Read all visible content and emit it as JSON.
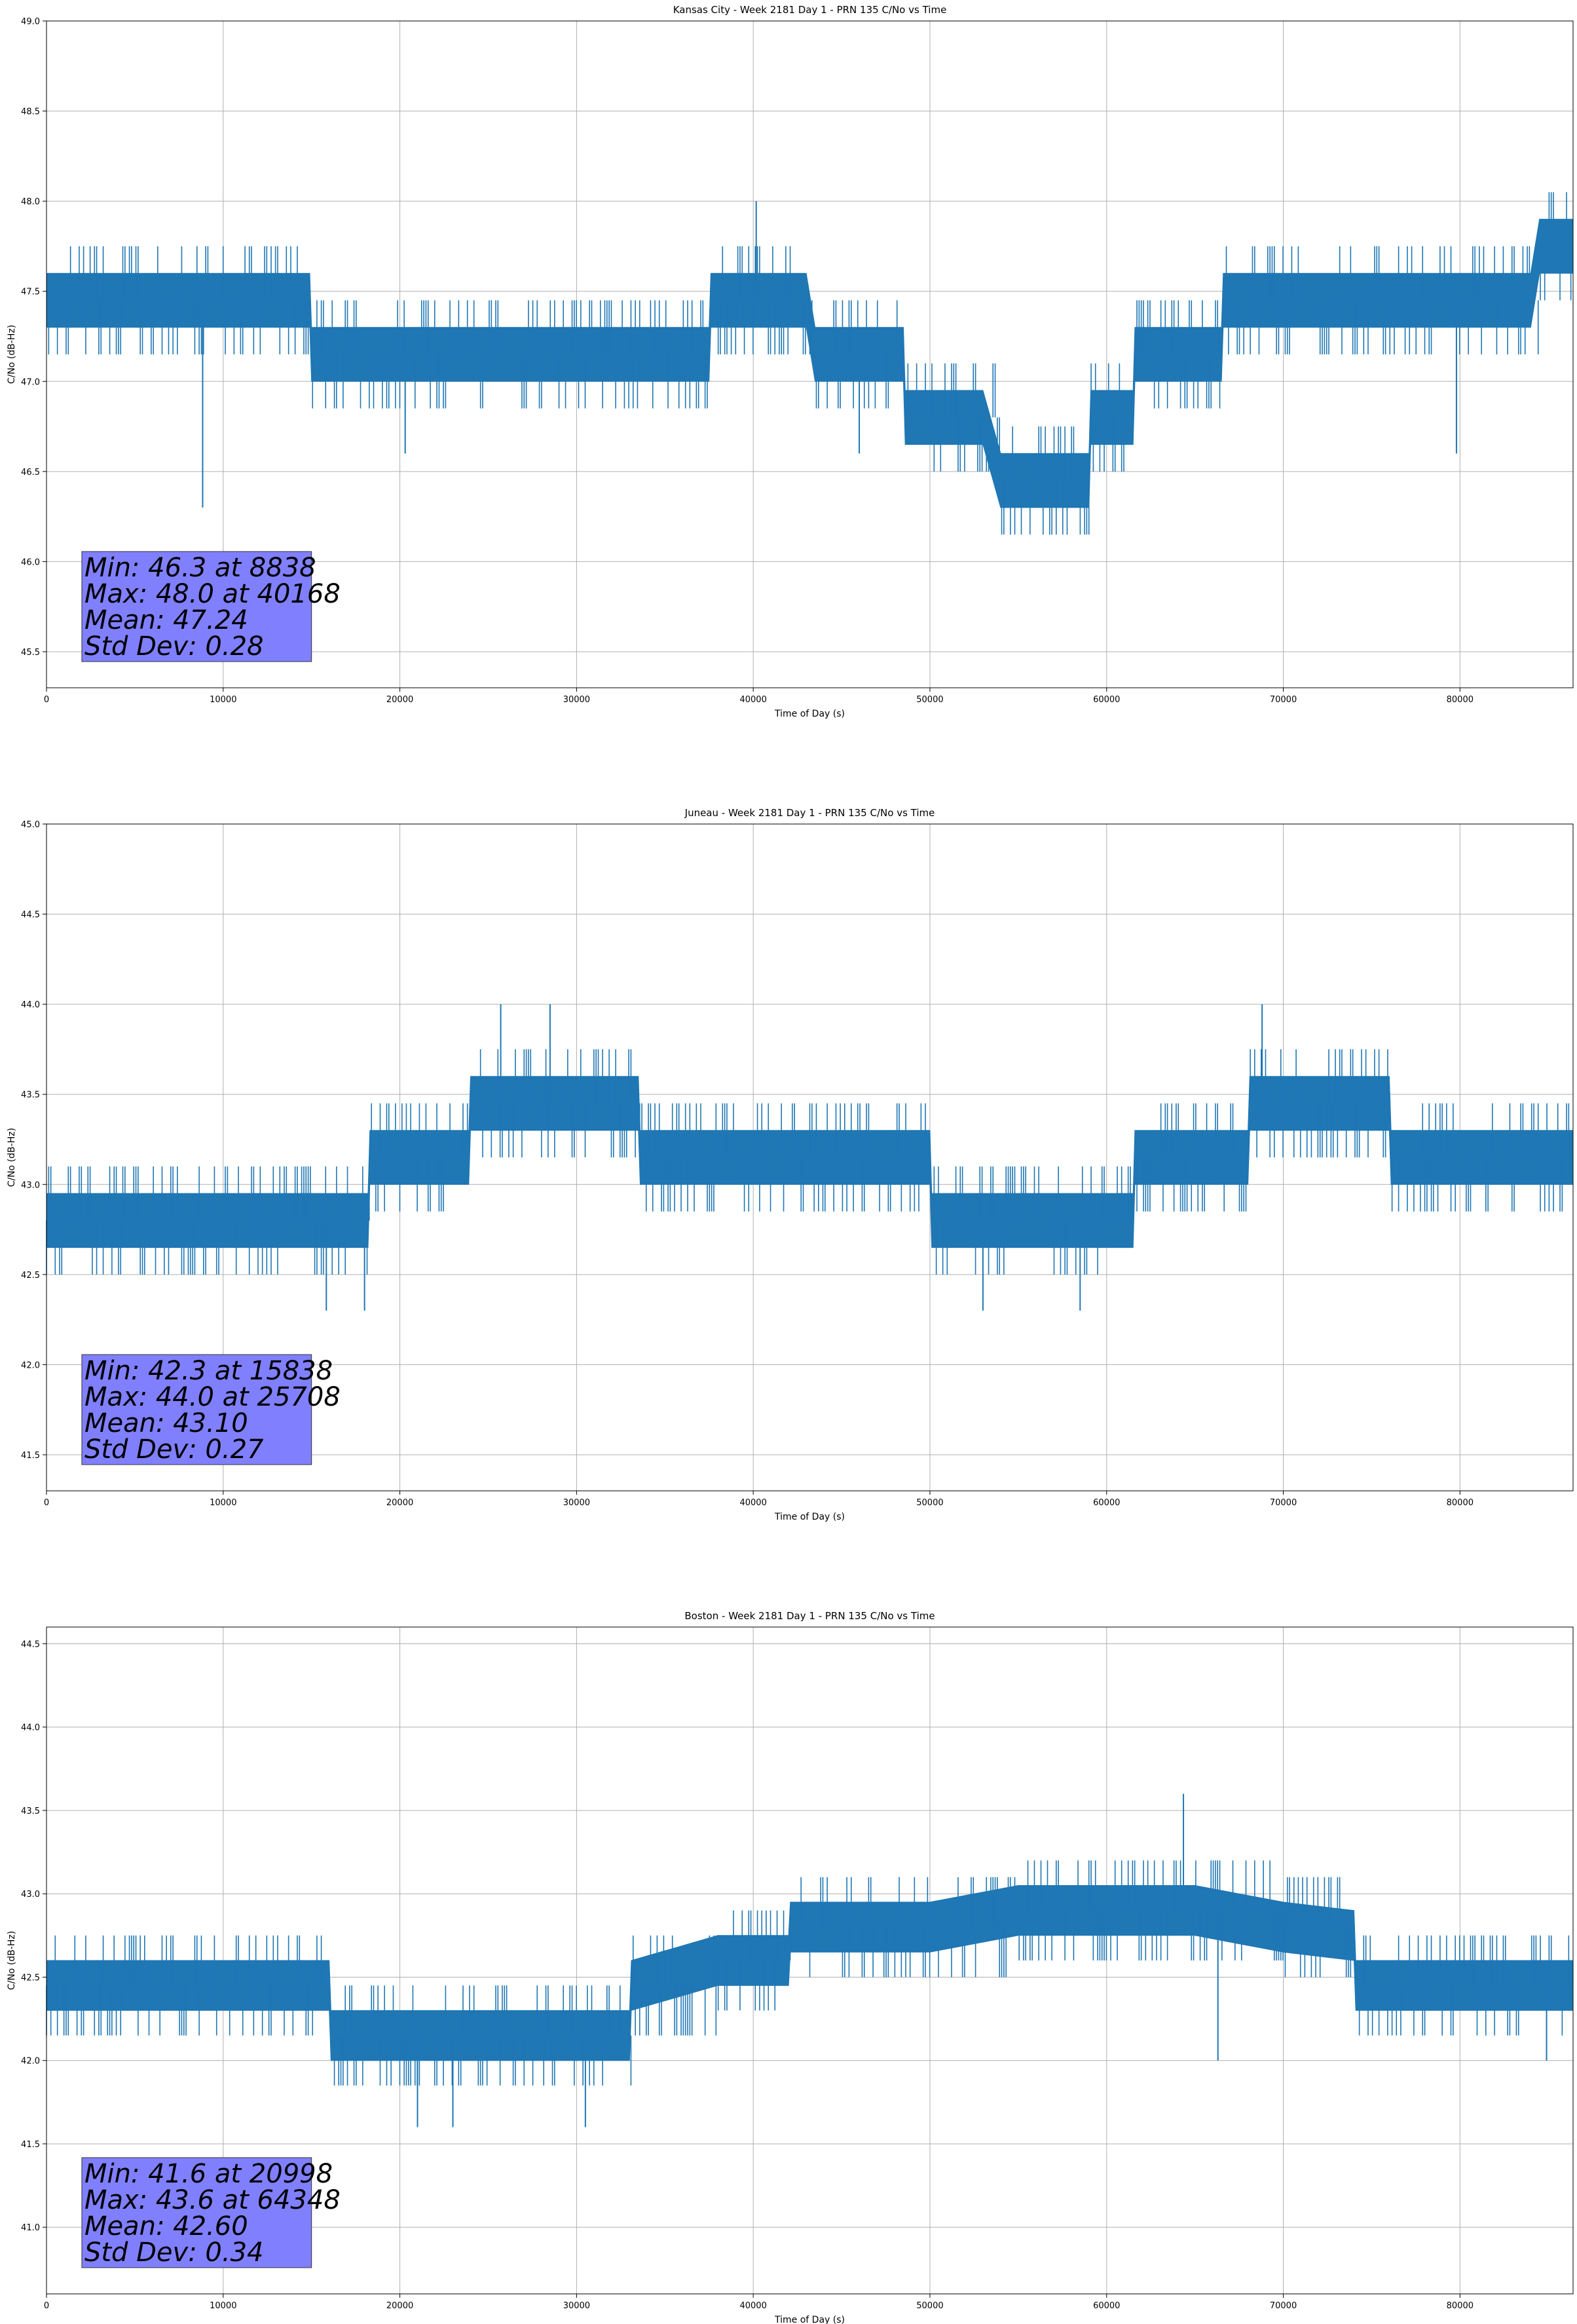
{
  "chart_data": [
    {
      "type": "line",
      "title": "Kansas City - Week 2181 Day 1 - PRN 135 C/No vs Time",
      "xlabel": "Time of Day (s)",
      "ylabel": "C/No (dB-Hz)",
      "xlim": [
        0,
        86400
      ],
      "ylim": [
        45.3,
        49.0
      ],
      "xticks": [
        0,
        10000,
        20000,
        30000,
        40000,
        50000,
        60000,
        70000,
        80000
      ],
      "yticks": [
        45.5,
        46.0,
        46.5,
        47.0,
        47.5,
        48.0,
        48.5,
        49.0
      ],
      "grid": true,
      "color": "#1f77b4",
      "band_width": 0.3,
      "series": [
        {
          "name": "C/No",
          "x": [
            0,
            5000,
            10000,
            14900,
            15000,
            20000,
            25000,
            30000,
            37500,
            37600,
            40000,
            43000,
            43500,
            45000,
            48500,
            48600,
            50000,
            53000,
            54000,
            57000,
            59000,
            59100,
            61500,
            61600,
            63000,
            65000,
            66500,
            66600,
            70000,
            75000,
            80000,
            84000,
            84500,
            86400
          ],
          "y": [
            47.45,
            47.45,
            47.45,
            47.45,
            47.15,
            47.15,
            47.15,
            47.15,
            47.15,
            47.45,
            47.45,
            47.45,
            47.15,
            47.15,
            47.15,
            46.8,
            46.8,
            46.8,
            46.45,
            46.45,
            46.45,
            46.8,
            46.8,
            47.15,
            47.15,
            47.15,
            47.15,
            47.45,
            47.45,
            47.45,
            47.45,
            47.45,
            47.75,
            47.75
          ],
          "spikes": [
            [
              8838,
              46.3
            ],
            [
              20300,
              46.6
            ],
            [
              40168,
              48.0
            ],
            [
              46000,
              46.6
            ],
            [
              79800,
              46.6
            ]
          ]
        }
      ],
      "annotation": [
        "Min: 46.3 at 8838",
        "Max: 48.0 at 40168",
        "Mean: 47.24",
        "Std Dev: 0.28"
      ]
    },
    {
      "type": "line",
      "title": "Juneau - Week 2181 Day 1 - PRN 135 C/No vs Time",
      "xlabel": "Time of Day (s)",
      "ylabel": "C/No (dB-Hz)",
      "xlim": [
        0,
        86400
      ],
      "ylim": [
        41.3,
        45.0
      ],
      "xticks": [
        0,
        10000,
        20000,
        30000,
        40000,
        50000,
        60000,
        70000,
        80000
      ],
      "yticks": [
        41.5,
        42.0,
        42.5,
        43.0,
        43.5,
        44.0,
        44.5,
        45.0
      ],
      "grid": true,
      "color": "#1f77b4",
      "band_width": 0.3,
      "series": [
        {
          "name": "C/No",
          "x": [
            0,
            5000,
            9000,
            12000,
            18200,
            18300,
            22000,
            23900,
            24000,
            28000,
            30000,
            33500,
            33600,
            40000,
            50000,
            50100,
            55000,
            61500,
            61600,
            65000,
            68000,
            68100,
            72000,
            76000,
            76100,
            80000,
            86400
          ],
          "y": [
            42.8,
            42.8,
            42.8,
            42.8,
            42.8,
            43.15,
            43.15,
            43.15,
            43.45,
            43.45,
            43.45,
            43.45,
            43.15,
            43.15,
            43.15,
            42.8,
            42.8,
            42.8,
            43.15,
            43.15,
            43.15,
            43.45,
            43.45,
            43.45,
            43.15,
            43.15,
            43.15
          ],
          "spikes": [
            [
              15838,
              42.3
            ],
            [
              18000,
              42.3
            ],
            [
              25708,
              44.0
            ],
            [
              28500,
              44.0
            ],
            [
              53000,
              42.3
            ],
            [
              58500,
              42.3
            ],
            [
              68800,
              44.0
            ]
          ]
        }
      ],
      "annotation": [
        "Min: 42.3 at 15838",
        "Max: 44.0 at 25708",
        "Mean: 43.10",
        "Std Dev: 0.27"
      ]
    },
    {
      "type": "line",
      "title": "Boston - Week 2181 Day 1 - PRN 135 C/No vs Time",
      "xlabel": "Time of Day (s)",
      "ylabel": "C/No (dB-Hz)",
      "xlim": [
        0,
        86400
      ],
      "ylim": [
        40.6,
        44.6
      ],
      "xticks": [
        0,
        10000,
        20000,
        30000,
        40000,
        50000,
        60000,
        70000,
        80000
      ],
      "yticks": [
        41.0,
        41.5,
        42.0,
        42.5,
        43.0,
        43.5,
        44.0,
        44.5
      ],
      "grid": true,
      "color": "#1f77b4",
      "band_width": 0.3,
      "series": [
        {
          "name": "C/No",
          "x": [
            0,
            5000,
            10000,
            16000,
            16100,
            20000,
            25000,
            33000,
            33100,
            38000,
            42000,
            42100,
            50000,
            55000,
            60000,
            65000,
            70000,
            74000,
            74100,
            80000,
            86400
          ],
          "y": [
            42.45,
            42.45,
            42.45,
            42.45,
            42.15,
            42.15,
            42.15,
            42.15,
            42.45,
            42.6,
            42.6,
            42.8,
            42.8,
            42.9,
            42.9,
            42.9,
            42.8,
            42.75,
            42.45,
            42.45,
            42.45
          ],
          "spikes": [
            [
              20998,
              41.6
            ],
            [
              23000,
              41.6
            ],
            [
              30500,
              41.6
            ],
            [
              64348,
              43.6
            ],
            [
              66300,
              42.0
            ],
            [
              84900,
              42.0
            ]
          ]
        }
      ],
      "annotation": [
        "Min: 41.6 at 20998",
        "Max: 43.6 at 64348",
        "Mean: 42.60",
        "Std Dev: 0.34"
      ]
    }
  ]
}
